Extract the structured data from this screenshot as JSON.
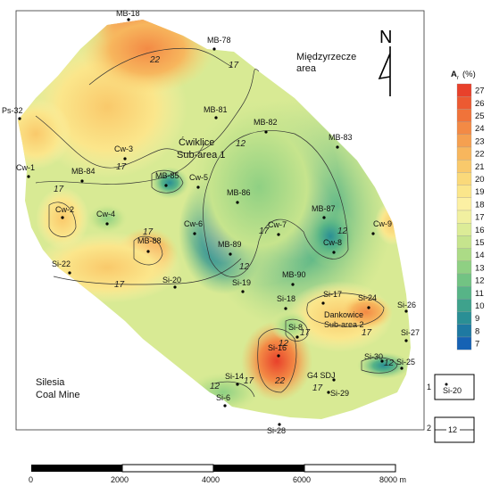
{
  "map": {
    "north_label": "N",
    "legend_title": "A",
    "legend_sub": "r",
    "legend_unit": "(%)",
    "legend_values": [
      "27",
      "26",
      "25",
      "24",
      "23",
      "22",
      "21",
      "20",
      "19",
      "18",
      "17",
      "16",
      "15",
      "14",
      "13",
      "12",
      "11",
      "10",
      "9",
      "8",
      "7"
    ],
    "legend_colors": [
      "#e8412b",
      "#ec5a32",
      "#f0733a",
      "#f38a45",
      "#f5a050",
      "#f7b65d",
      "#f9c96b",
      "#fad97a",
      "#fbe68b",
      "#fcf0a3",
      "#f1f0a0",
      "#dcec97",
      "#c6e48d",
      "#acdb86",
      "#8fd083",
      "#72c383",
      "#57b487",
      "#3ea28c",
      "#2a8f95",
      "#1e79a2",
      "#1662b4"
    ],
    "region_labels": {
      "miedzyrzecze_1": "Międzyrzecze",
      "miedzyrzecze_2": "area",
      "cwiklice_1": "Ćwiklice",
      "cwiklice_2": "Sub-area 1",
      "dankowice_1": "Dankowice",
      "dankowice_2": "Sub-area 2",
      "silesia_1": "Silesia",
      "silesia_2": "Coal Mine"
    },
    "wells": [
      {
        "name": "MB-18"
      },
      {
        "name": "MB-78"
      },
      {
        "name": "Ps-32"
      },
      {
        "name": "MB-81"
      },
      {
        "name": "MB-82"
      },
      {
        "name": "MB-83"
      },
      {
        "name": "Cw-3"
      },
      {
        "name": "Cw-1"
      },
      {
        "name": "MB-84"
      },
      {
        "name": "MB-85"
      },
      {
        "name": "Cw-5"
      },
      {
        "name": "MB-86"
      },
      {
        "name": "MB-87"
      },
      {
        "name": "Cw-9"
      },
      {
        "name": "Cw-2"
      },
      {
        "name": "Cw-4"
      },
      {
        "name": "Cw-6"
      },
      {
        "name": "Cw-7"
      },
      {
        "name": "Cw-8"
      },
      {
        "name": "MB-88"
      },
      {
        "name": "MB-89"
      },
      {
        "name": "Si-22"
      },
      {
        "name": "Si-20"
      },
      {
        "name": "Si-19"
      },
      {
        "name": "MB-90"
      },
      {
        "name": "Si-18"
      },
      {
        "name": "Si-17"
      },
      {
        "name": "Si-24"
      },
      {
        "name": "Si-26"
      },
      {
        "name": "Si-8"
      },
      {
        "name": "Si-27"
      },
      {
        "name": "Si-16"
      },
      {
        "name": "Si-30"
      },
      {
        "name": "Si-25"
      },
      {
        "name": "G4 SDJ"
      },
      {
        "name": "Si-14"
      },
      {
        "name": "Si-29"
      },
      {
        "name": "Si-6"
      },
      {
        "name": "Si-28"
      }
    ],
    "isolines": [
      "22",
      "17",
      "12",
      "17",
      "17",
      "17",
      "17",
      "17",
      "12",
      "12",
      "12",
      "17",
      "17",
      "17",
      "12",
      "17",
      "22",
      "12"
    ],
    "scale_labels": [
      "0",
      "2000",
      "4000",
      "6000",
      "8000 m"
    ],
    "key": [
      {
        "num": "1",
        "text": "Si-20"
      },
      {
        "num": "2",
        "text": "12"
      }
    ]
  }
}
